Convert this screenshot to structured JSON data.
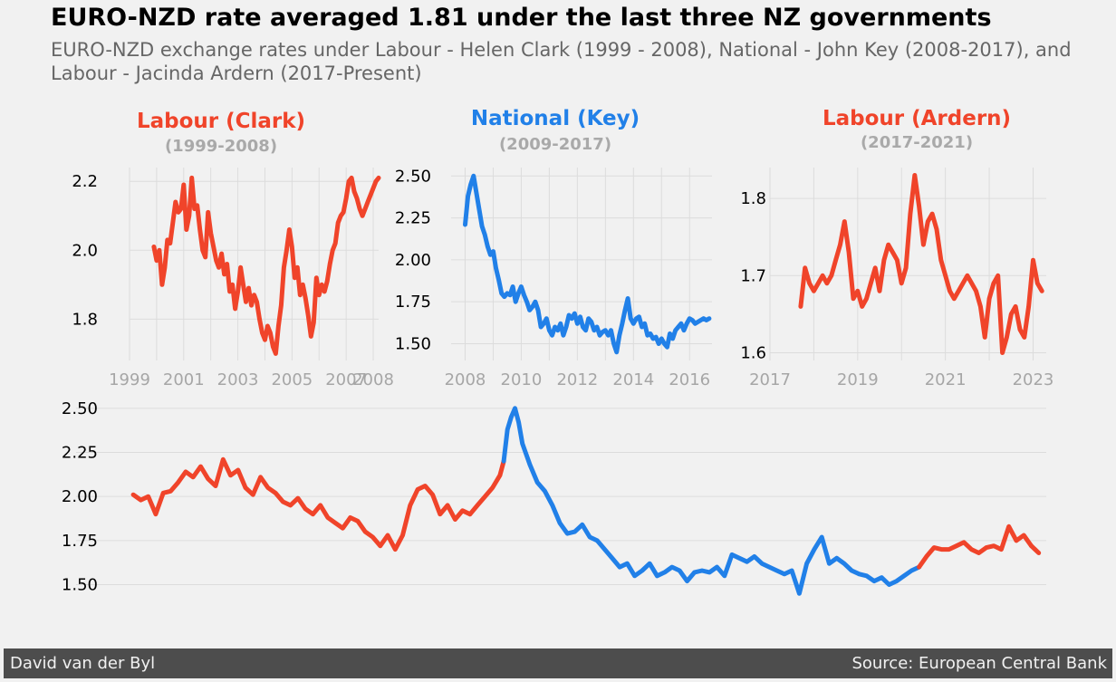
{
  "header": {
    "title": "EURO-NZD rate averaged 1.81 under the last three NZ governments",
    "subtitle": "EURO-NZD exchange rates under Labour - Helen Clark (1999 - 2008), National - John Key (2008-2017), and Labour - Jacinda Ardern (2017-Present)"
  },
  "footer": {
    "author": "David van der Byl",
    "source": "Source: European Central Bank"
  },
  "colors": {
    "labour": "#f0442a",
    "national": "#2180e8",
    "grid": "#dcdcdc",
    "background": "#f1f1f1"
  },
  "chart_data": [
    {
      "type": "line",
      "title": "Labour (Clark)",
      "subtitle": "(1999-2008)",
      "title_color": "#f0442a",
      "xlim": [
        1999,
        2008.2
      ],
      "ylim": [
        1.68,
        2.24
      ],
      "xticks": [
        1999,
        2001,
        2003,
        2005,
        2007,
        2008
      ],
      "yticks": [
        1.8,
        2.0,
        2.2
      ],
      "ytick_labels": [
        "1.8",
        "2.0",
        "2.2"
      ],
      "series": [
        {
          "color": "#f0442a",
          "x": [
            1999.9,
            2000.0,
            2000.1,
            2000.2,
            2000.3,
            2000.4,
            2000.5,
            2000.6,
            2000.7,
            2000.8,
            2000.9,
            2001.0,
            2001.1,
            2001.2,
            2001.3,
            2001.4,
            2001.5,
            2001.6,
            2001.7,
            2001.8,
            2001.9,
            2002.0,
            2002.1,
            2002.2,
            2002.3,
            2002.4,
            2002.5,
            2002.6,
            2002.7,
            2002.8,
            2002.9,
            2003.0,
            2003.1,
            2003.2,
            2003.3,
            2003.4,
            2003.5,
            2003.6,
            2003.7,
            2003.8,
            2003.9,
            2004.0,
            2004.1,
            2004.2,
            2004.3,
            2004.4,
            2004.5,
            2004.6,
            2004.7,
            2004.8,
            2004.9,
            2005.0,
            2005.1,
            2005.2,
            2005.3,
            2005.4,
            2005.5,
            2005.6,
            2005.7,
            2005.8,
            2005.9,
            2006.0,
            2006.1,
            2006.2,
            2006.3,
            2006.4,
            2006.5,
            2006.6,
            2006.7,
            2006.8,
            2006.9,
            2007.0,
            2007.1,
            2007.2,
            2007.3,
            2007.4,
            2007.5,
            2007.6,
            2007.7,
            2007.8,
            2007.9,
            2008.0,
            2008.1,
            2008.2
          ],
          "y": [
            2.01,
            1.97,
            2.0,
            1.9,
            1.95,
            2.03,
            2.02,
            2.08,
            2.14,
            2.11,
            2.12,
            2.19,
            2.06,
            2.1,
            2.21,
            2.12,
            2.13,
            2.06,
            2.0,
            1.98,
            2.11,
            2.05,
            2.01,
            1.97,
            1.95,
            1.99,
            1.93,
            1.96,
            1.88,
            1.9,
            1.83,
            1.88,
            1.95,
            1.9,
            1.85,
            1.89,
            1.84,
            1.87,
            1.85,
            1.8,
            1.76,
            1.74,
            1.78,
            1.76,
            1.72,
            1.7,
            1.78,
            1.84,
            1.95,
            2.0,
            2.06,
            2.01,
            1.92,
            1.95,
            1.87,
            1.9,
            1.86,
            1.81,
            1.75,
            1.79,
            1.92,
            1.87,
            1.9,
            1.88,
            1.91,
            1.96,
            2.0,
            2.02,
            2.08,
            2.1,
            2.11,
            2.15,
            2.2,
            2.21,
            2.17,
            2.15,
            2.12,
            2.1,
            2.12,
            2.14,
            2.16,
            2.18,
            2.2,
            2.21
          ]
        }
      ]
    },
    {
      "type": "line",
      "title": "National (Key)",
      "subtitle": "(2009-2017)",
      "title_color": "#2180e8",
      "xlim": [
        2007.5,
        2016.8
      ],
      "ylim": [
        1.4,
        2.55
      ],
      "xticks": [
        2008,
        2010,
        2012,
        2014,
        2016
      ],
      "yticks": [
        1.5,
        1.75,
        2.0,
        2.25,
        2.5
      ],
      "ytick_labels": [
        "1.50",
        "1.75",
        "2.00",
        "2.25",
        "2.50"
      ],
      "series": [
        {
          "color": "#2180e8",
          "x": [
            2008.0,
            2008.1,
            2008.2,
            2008.3,
            2008.4,
            2008.5,
            2008.6,
            2008.7,
            2008.8,
            2008.9,
            2009.0,
            2009.1,
            2009.2,
            2009.3,
            2009.4,
            2009.5,
            2009.6,
            2009.7,
            2009.8,
            2009.9,
            2010.0,
            2010.1,
            2010.2,
            2010.3,
            2010.4,
            2010.5,
            2010.6,
            2010.7,
            2010.8,
            2010.9,
            2011.0,
            2011.1,
            2011.2,
            2011.3,
            2011.4,
            2011.5,
            2011.6,
            2011.7,
            2011.8,
            2011.9,
            2012.0,
            2012.1,
            2012.2,
            2012.3,
            2012.4,
            2012.5,
            2012.6,
            2012.7,
            2012.8,
            2012.9,
            2013.0,
            2013.1,
            2013.2,
            2013.3,
            2013.4,
            2013.5,
            2013.6,
            2013.7,
            2013.8,
            2013.9,
            2014.0,
            2014.1,
            2014.2,
            2014.3,
            2014.4,
            2014.5,
            2014.6,
            2014.7,
            2014.8,
            2014.9,
            2015.0,
            2015.1,
            2015.2,
            2015.3,
            2015.4,
            2015.5,
            2015.6,
            2015.7,
            2015.8,
            2015.9,
            2016.0,
            2016.1,
            2016.2,
            2016.3,
            2016.4,
            2016.5,
            2016.6,
            2016.7
          ],
          "y": [
            2.21,
            2.38,
            2.45,
            2.5,
            2.4,
            2.3,
            2.2,
            2.15,
            2.08,
            2.03,
            2.05,
            1.95,
            1.88,
            1.8,
            1.78,
            1.8,
            1.79,
            1.84,
            1.75,
            1.8,
            1.84,
            1.79,
            1.75,
            1.7,
            1.72,
            1.75,
            1.7,
            1.6,
            1.62,
            1.65,
            1.58,
            1.55,
            1.6,
            1.58,
            1.62,
            1.55,
            1.6,
            1.67,
            1.65,
            1.68,
            1.62,
            1.66,
            1.6,
            1.58,
            1.65,
            1.63,
            1.58,
            1.6,
            1.55,
            1.57,
            1.58,
            1.55,
            1.58,
            1.5,
            1.45,
            1.55,
            1.62,
            1.7,
            1.77,
            1.65,
            1.62,
            1.65,
            1.66,
            1.6,
            1.62,
            1.55,
            1.56,
            1.53,
            1.54,
            1.5,
            1.53,
            1.5,
            1.48,
            1.56,
            1.53,
            1.58,
            1.6,
            1.62,
            1.58,
            1.62,
            1.65,
            1.64,
            1.62,
            1.63,
            1.64,
            1.65,
            1.64,
            1.65
          ]
        }
      ]
    },
    {
      "type": "line",
      "title": "Labour (Ardern)",
      "subtitle": "(2017-2021)",
      "title_color": "#f0442a",
      "xlim": [
        2017,
        2023.3
      ],
      "ylim": [
        1.59,
        1.84
      ],
      "xticks": [
        2017,
        2019,
        2021,
        2023
      ],
      "yticks": [
        1.6,
        1.7,
        1.8
      ],
      "ytick_labels": [
        "1.6",
        "1.7",
        "1.8"
      ],
      "series": [
        {
          "color": "#f0442a",
          "x": [
            2017.7,
            2017.8,
            2017.9,
            2018.0,
            2018.1,
            2018.2,
            2018.3,
            2018.4,
            2018.5,
            2018.6,
            2018.7,
            2018.8,
            2018.9,
            2019.0,
            2019.1,
            2019.2,
            2019.3,
            2019.4,
            2019.5,
            2019.6,
            2019.7,
            2019.8,
            2019.9,
            2020.0,
            2020.1,
            2020.2,
            2020.3,
            2020.4,
            2020.5,
            2020.6,
            2020.7,
            2020.8,
            2020.9,
            2021.0,
            2021.1,
            2021.2,
            2021.3,
            2021.4,
            2021.5,
            2021.6,
            2021.7,
            2021.8,
            2021.9,
            2022.0,
            2022.1,
            2022.2,
            2022.3,
            2022.4,
            2022.5,
            2022.6,
            2022.7,
            2022.8,
            2022.9,
            2023.0,
            2023.1,
            2023.2
          ],
          "y": [
            1.66,
            1.71,
            1.69,
            1.68,
            1.69,
            1.7,
            1.69,
            1.7,
            1.72,
            1.74,
            1.77,
            1.73,
            1.67,
            1.68,
            1.66,
            1.67,
            1.69,
            1.71,
            1.68,
            1.72,
            1.74,
            1.73,
            1.72,
            1.69,
            1.71,
            1.78,
            1.83,
            1.79,
            1.74,
            1.77,
            1.78,
            1.76,
            1.72,
            1.7,
            1.68,
            1.67,
            1.68,
            1.69,
            1.7,
            1.69,
            1.68,
            1.66,
            1.62,
            1.67,
            1.69,
            1.7,
            1.6,
            1.62,
            1.65,
            1.66,
            1.63,
            1.62,
            1.66,
            1.72,
            1.69,
            1.68
          ]
        }
      ]
    },
    {
      "type": "line",
      "title": "",
      "xlim": [
        1998.9,
        2023.4
      ],
      "ylim": [
        1.4,
        2.53
      ],
      "yticks": [
        1.5,
        1.75,
        2.0,
        2.25,
        2.5
      ],
      "ytick_labels": [
        "1.50",
        "1.75",
        "2.00",
        "2.25",
        "2.50"
      ],
      "series": [
        {
          "color": "#f0442a",
          "x": [
            1999.0,
            1999.2,
            1999.4,
            1999.6,
            1999.8,
            2000.0,
            2000.2,
            2000.4,
            2000.6,
            2000.8,
            2001.0,
            2001.2,
            2001.4,
            2001.6,
            2001.8,
            2002.0,
            2002.2,
            2002.4,
            2002.6,
            2002.8,
            2003.0,
            2003.2,
            2003.4,
            2003.6,
            2003.8,
            2004.0,
            2004.2,
            2004.4,
            2004.6,
            2004.8,
            2005.0,
            2005.2,
            2005.4,
            2005.6,
            2005.8,
            2006.0,
            2006.2,
            2006.4,
            2006.6,
            2006.8,
            2007.0,
            2007.2,
            2007.4,
            2007.6,
            2007.8,
            2008.0
          ],
          "y": [
            2.01,
            1.98,
            2.0,
            1.9,
            2.02,
            2.03,
            2.08,
            2.14,
            2.11,
            2.17,
            2.1,
            2.06,
            2.21,
            2.12,
            2.15,
            2.05,
            2.01,
            2.11,
            2.05,
            2.02,
            1.97,
            1.95,
            1.99,
            1.93,
            1.9,
            1.95,
            1.88,
            1.85,
            1.82,
            1.88,
            1.86,
            1.8,
            1.77,
            1.72,
            1.78,
            1.7,
            1.78,
            1.95,
            2.04,
            2.06,
            2.01,
            1.9,
            1.95,
            1.87,
            1.92,
            1.9
          ]
        },
        {
          "color": "#f0442a",
          "x": [
            2008.0,
            2008.2,
            2008.4,
            2008.6,
            2008.8,
            2008.9
          ],
          "y": [
            1.9,
            1.95,
            2.0,
            2.05,
            2.12,
            2.2
          ]
        },
        {
          "color": "#2180e8",
          "x": [
            2008.9,
            2009.0,
            2009.1,
            2009.2,
            2009.3,
            2009.4,
            2009.6,
            2009.8,
            2010.0,
            2010.2,
            2010.4,
            2010.6,
            2010.8,
            2011.0,
            2011.2,
            2011.4,
            2011.6,
            2011.8,
            2012.0,
            2012.2,
            2012.4,
            2012.6,
            2012.8,
            2013.0,
            2013.2,
            2013.4,
            2013.6,
            2013.8,
            2014.0,
            2014.2,
            2014.4,
            2014.6,
            2014.8,
            2015.0,
            2015.2,
            2015.4,
            2015.6,
            2015.8,
            2016.0,
            2016.2,
            2016.4,
            2016.6,
            2016.8,
            2017.0,
            2017.2,
            2017.4,
            2017.6,
            2017.8
          ],
          "y": [
            2.2,
            2.38,
            2.45,
            2.5,
            2.42,
            2.3,
            2.18,
            2.08,
            2.03,
            1.95,
            1.85,
            1.79,
            1.8,
            1.84,
            1.77,
            1.75,
            1.7,
            1.65,
            1.6,
            1.62,
            1.55,
            1.58,
            1.62,
            1.55,
            1.57,
            1.6,
            1.58,
            1.52,
            1.57,
            1.58,
            1.57,
            1.6,
            1.55,
            1.67,
            1.65,
            1.63,
            1.66,
            1.62,
            1.6,
            1.58,
            1.56,
            1.58,
            1.45,
            1.62,
            1.7,
            1.77,
            1.62,
            1.65
          ]
        },
        {
          "color": "#2180e8",
          "x": [
            2017.8,
            2018.0,
            2018.2,
            2018.4,
            2018.6,
            2018.8,
            2019.0,
            2019.2,
            2019.4,
            2019.6,
            2019.8,
            2020.0
          ],
          "y": [
            1.65,
            1.62,
            1.58,
            1.56,
            1.55,
            1.52,
            1.54,
            1.5,
            1.52,
            1.55,
            1.58,
            1.6
          ]
        },
        {
          "color": "#f0442a",
          "x": [
            2020.0,
            2020.2,
            2020.4,
            2020.6,
            2020.8,
            2021.0,
            2021.2,
            2021.4,
            2021.6,
            2021.8,
            2022.0,
            2022.2,
            2022.4,
            2022.6,
            2022.8,
            2023.0
          ],
          "y": [
            1.6,
            1.66,
            1.71,
            1.7,
            1.7,
            1.72,
            1.74,
            1.7,
            1.68,
            1.71,
            1.72,
            1.7,
            1.83,
            1.75,
            1.78,
            1.72
          ]
        },
        {
          "color": "#f0442a",
          "x": [
            2023.0,
            2023.2
          ],
          "y": [
            1.72,
            1.68
          ]
        }
      ]
    }
  ]
}
